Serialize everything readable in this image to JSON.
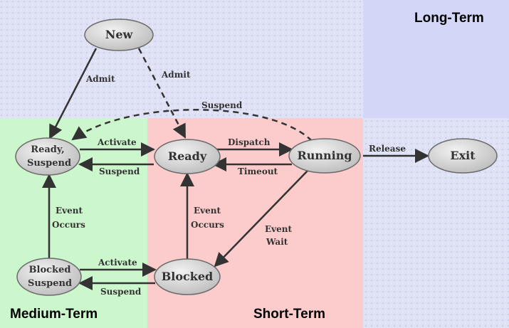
{
  "regions": {
    "long_term": "Long-Term",
    "medium_term": "Medium-Term",
    "short_term": "Short-Term"
  },
  "states": {
    "new": "New",
    "ready_suspend": [
      "Ready,",
      "Suspend"
    ],
    "ready": "Ready",
    "running": "Running",
    "exit": "Exit",
    "blocked_suspend": [
      "Blocked",
      "Suspend"
    ],
    "blocked": "Blocked"
  },
  "transitions": {
    "admit_left": "Admit",
    "admit_right": "Admit",
    "suspend_top": "Suspend",
    "activate_top": "Activate",
    "suspend_mid": "Suspend",
    "dispatch": "Dispatch",
    "timeout": "Timeout",
    "release": "Release",
    "event_occurs_left": [
      "Event",
      "Occurs"
    ],
    "event_occurs_right": [
      "Event",
      "Occurs"
    ],
    "event_wait": [
      "Event",
      "Wait"
    ],
    "activate_bottom": "Activate",
    "suspend_bottom": "Suspend"
  },
  "colors": {
    "long_term_bg": "#d8dcf6",
    "medium_term_bg": "#ccf5cc",
    "short_term_bg": "#fbcccc",
    "node_fill": "#c9c9c9",
    "arrow": "#333333"
  }
}
